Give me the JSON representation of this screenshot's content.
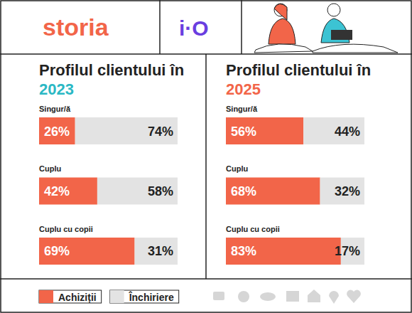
{
  "header": {
    "logos": [
      "storia",
      "i·O"
    ]
  },
  "chart_data": [
    {
      "type": "bar",
      "title": "Profilul clientului în 2023",
      "orientation": "horizontal",
      "stacked": true,
      "data_labels": true,
      "tick_labels": "y",
      "legend": "bottom",
      "categories": [
        "Singur/ă",
        "Cuplu",
        "Cuplu cu copii"
      ],
      "xlim": [
        0,
        100
      ],
      "series": [
        {
          "name": "Achiziții",
          "color": "#f26549",
          "values": [
            26,
            42,
            69
          ],
          "value_labels": [
            "26%",
            "42%",
            "69%"
          ]
        },
        {
          "name": "Închiriere",
          "color": "#e3e3e3",
          "values": [
            74,
            58,
            31
          ],
          "value_labels": [
            "74%",
            "58%",
            "31%"
          ]
        }
      ]
    },
    {
      "type": "bar",
      "title": "Profilul clientului în 2025",
      "orientation": "horizontal",
      "stacked": true,
      "data_labels": true,
      "tick_labels": "y",
      "legend": "bottom",
      "categories": [
        "Singur/ă",
        "Cuplu",
        "Cuplu cu copii"
      ],
      "xlim": [
        0,
        100
      ],
      "series": [
        {
          "name": "Achiziții",
          "color": "#f26549",
          "values": [
            56,
            68,
            83
          ],
          "value_labels": [
            "56%",
            "68%",
            "83%"
          ]
        },
        {
          "name": "Închiriere",
          "color": "#e3e3e3",
          "values": [
            44,
            32,
            17
          ],
          "value_labels": [
            "44%",
            "32%",
            "17%"
          ]
        }
      ]
    }
  ]
}
